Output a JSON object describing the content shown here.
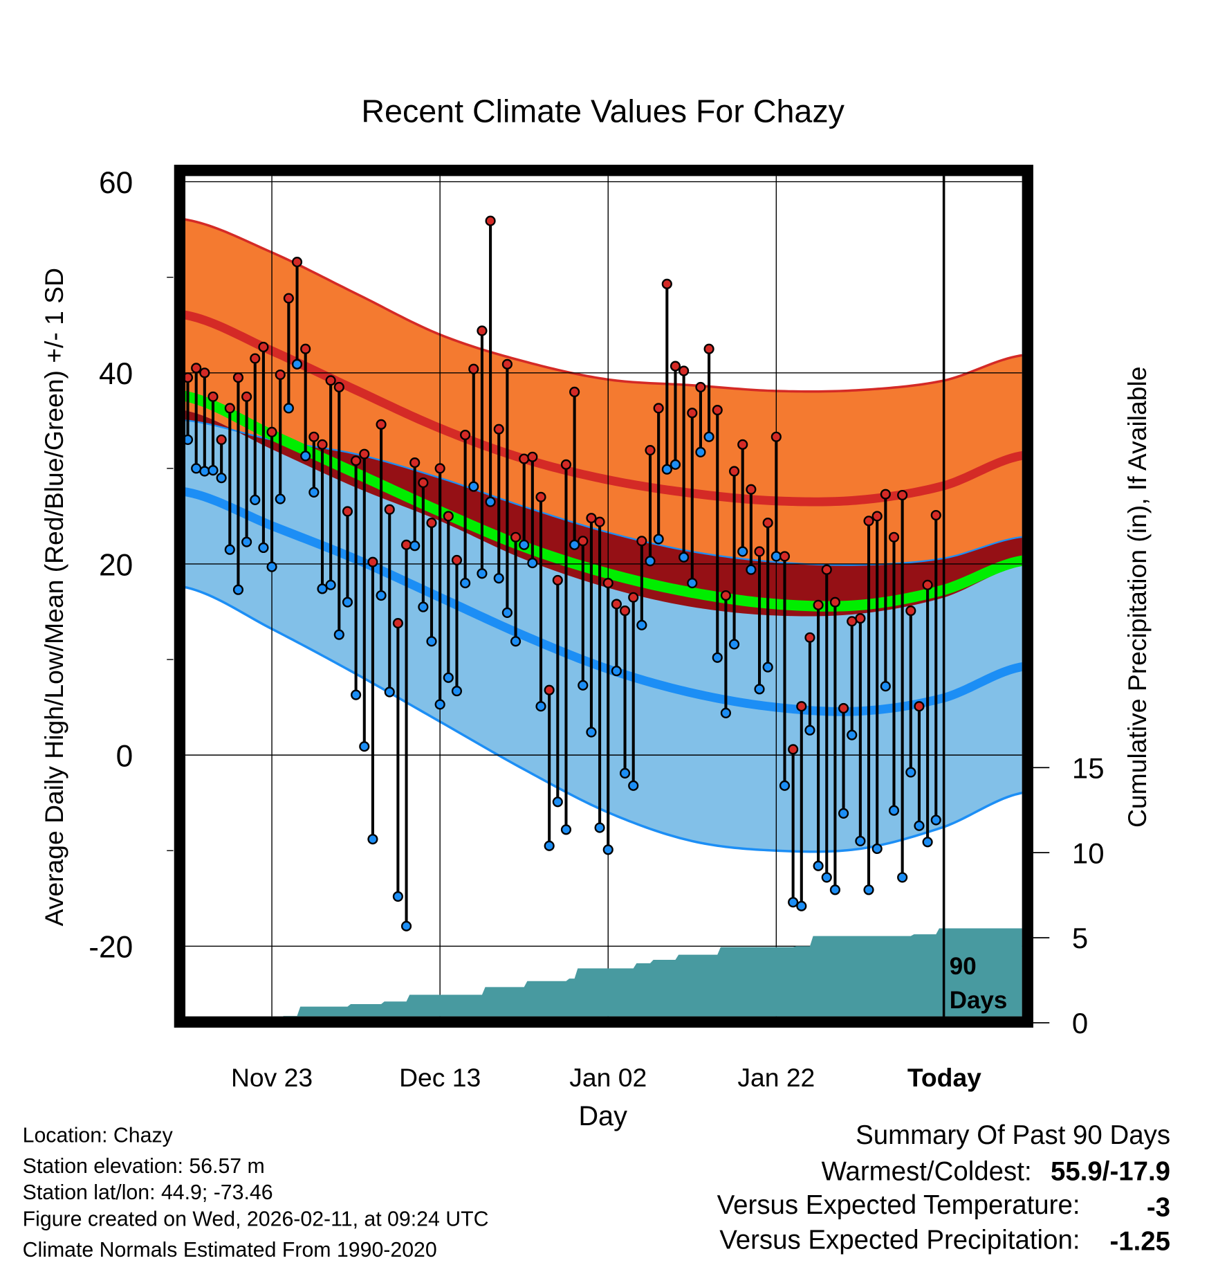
{
  "chart_data": {
    "type": "line",
    "title": "Recent Climate Values For Chazy",
    "xlabel": "Day",
    "ylabel": "Average Daily High/Low/Mean (Red/Blue/Green) +/- 1 SD",
    "y2label": "Cumulative Precipitation (in), If Available",
    "ylim": [
      -28,
      63
    ],
    "y_ticks": [
      "60",
      "40",
      "20",
      "0",
      "-20"
    ],
    "y_tick_values": [
      60,
      40,
      20,
      0,
      -20
    ],
    "y2_ticks": [
      "15",
      "10",
      "5",
      "0"
    ],
    "y2_tick_values": [
      15,
      10,
      5,
      0
    ],
    "x_ticks": [
      "Nov 23",
      "Dec 13",
      "Jan 02",
      "Jan 22",
      "Today"
    ],
    "x_tick_days": [
      10,
      30,
      50,
      70,
      90
    ],
    "today_label": "90\nDays",
    "today_label_lines": [
      "90",
      "Days"
    ],
    "colors": {
      "high_band": "#f47a30",
      "high_mean": "#d42a26",
      "overlap": "#951015",
      "low_band": "#82c0e8",
      "low_mean": "#1c8ef5",
      "mean": "#00ee00",
      "precip": "#489aa0",
      "high_point": "#d42a26",
      "low_point": "#1c8ef5"
    },
    "normals": {
      "days": [
        0,
        10,
        20,
        30,
        40,
        50,
        60,
        70,
        80,
        90,
        99
      ],
      "high_plus_sd": [
        56,
        52.6,
        48.3,
        44,
        41.2,
        39.3,
        38.7,
        38.1,
        38.2,
        39.2,
        41.8
      ],
      "high_mean": [
        46,
        42.3,
        38.2,
        34.2,
        31,
        28.8,
        27.4,
        26.6,
        26.7,
        28.2,
        31.3
      ],
      "high_minus_sd": [
        36,
        32,
        28,
        24.5,
        20.5,
        17.5,
        15.5,
        14.6,
        14.8,
        16.5,
        19.8
      ],
      "mean": [
        37.5,
        33.5,
        29.5,
        25.5,
        21.8,
        19,
        17,
        15.8,
        15.7,
        17.3,
        20.3
      ],
      "low_plus_sd": [
        35,
        33,
        31.5,
        29,
        26,
        23.3,
        21.3,
        20.2,
        19.9,
        20.6,
        22.8
      ],
      "low_mean": [
        27.5,
        24,
        20.5,
        16.5,
        12.5,
        9,
        6.5,
        5,
        4.6,
        6,
        9.2
      ],
      "low_minus_sd": [
        17.5,
        13.2,
        8.5,
        3.5,
        -1.5,
        -6,
        -9,
        -10,
        -9.8,
        -7.5,
        -4
      ]
    },
    "highs": [
      39.5,
      40.5,
      40,
      37.5,
      33,
      36.3,
      39.5,
      37.5,
      41.5,
      42.7,
      33.8,
      39.8,
      47.8,
      51.6,
      42.5,
      33.3,
      32.5,
      39.2,
      38.5,
      25.5,
      30.8,
      31.5,
      20.2,
      34.6,
      25.7,
      13.8,
      22,
      30.6,
      28.5,
      24.3,
      30,
      25,
      20.4,
      33.5,
      40.4,
      44.4,
      55.9,
      34.1,
      40.9,
      22.8,
      31,
      31.2,
      27,
      6.8,
      18.3,
      30.4,
      38,
      22.4,
      24.8,
      24.4,
      18,
      15.8,
      15.1,
      16.5,
      22.4,
      31.9,
      36.3,
      49.3,
      40.7,
      40.2,
      35.8,
      38.5,
      42.5,
      36.1,
      16.7,
      29.7,
      32.5,
      27.8,
      21.3,
      24.3,
      33.3,
      20.8,
      0.6,
      5.1,
      12.3,
      15.7,
      19.4,
      16,
      4.9,
      14,
      14.3,
      24.5,
      25,
      27.3,
      22.8,
      27.2,
      15.1,
      5.1,
      17.8,
      25.1
    ],
    "lows": [
      33,
      30,
      29.7,
      29.8,
      29,
      21.5,
      17.3,
      22.3,
      26.7,
      21.7,
      19.7,
      26.8,
      36.3,
      40.9,
      31.3,
      27.5,
      17.4,
      17.8,
      12.6,
      16,
      6.3,
      0.9,
      -8.8,
      16.7,
      6.6,
      -14.8,
      -17.9,
      21.9,
      15.5,
      11.9,
      5.3,
      8.1,
      6.7,
      18,
      28.1,
      19,
      26.5,
      18.5,
      14.9,
      11.9,
      22,
      20.1,
      5.1,
      -9.5,
      -4.9,
      -7.8,
      22,
      7.3,
      2.4,
      -7.6,
      -9.9,
      8.8,
      -1.9,
      -3.2,
      13.6,
      20.3,
      22.6,
      29.9,
      30.4,
      20.7,
      18,
      31.7,
      33.3,
      10.2,
      4.4,
      11.6,
      21.3,
      19.4,
      6.9,
      9.2,
      20.8,
      -3.2,
      -15.4,
      -15.8,
      2.6,
      -11.6,
      -12.8,
      -14.1,
      -6.1,
      2.1,
      -9,
      -14.1,
      -9.8,
      7.2,
      -5.8,
      -12.8,
      -1.8,
      -7.4,
      -9.1,
      -6.8
    ],
    "precip_cumulative": [
      [
        0,
        0.1
      ],
      [
        3,
        0.2
      ],
      [
        7,
        0.25
      ],
      [
        11,
        0.4
      ],
      [
        13,
        0.95
      ],
      [
        19,
        1.1
      ],
      [
        23,
        1.25
      ],
      [
        26,
        1.65
      ],
      [
        35,
        2.1
      ],
      [
        40,
        2.45
      ],
      [
        45,
        2.6
      ],
      [
        46,
        3.2
      ],
      [
        53,
        3.5
      ],
      [
        55,
        3.7
      ],
      [
        58,
        4.0
      ],
      [
        63,
        4.45
      ],
      [
        72,
        4.5
      ],
      [
        74,
        5.1
      ],
      [
        86,
        5.2
      ],
      [
        89,
        5.55
      ],
      [
        99,
        5.55
      ]
    ]
  },
  "footer": {
    "location": "Location: Chazy",
    "elevation": "Station elevation: 56.57 m",
    "latlon": "Station lat/lon: 44.9; -73.46",
    "created": "Figure created on Wed, 2026-02-11, at 09:24 UTC",
    "normals": "Climate Normals Estimated From 1990-2020"
  },
  "summary": {
    "title": "Summary Of Past 90 Days",
    "warmest_label": "Warmest/Coldest:",
    "warmest_value": "55.9/-17.9",
    "temp_label": "Versus Expected Temperature:",
    "temp_value": "-3",
    "temp_color": "#2a8ef0",
    "precip_label": "Versus Expected Precipitation:",
    "precip_value": "-1.25",
    "precip_color": "#a0522d"
  }
}
